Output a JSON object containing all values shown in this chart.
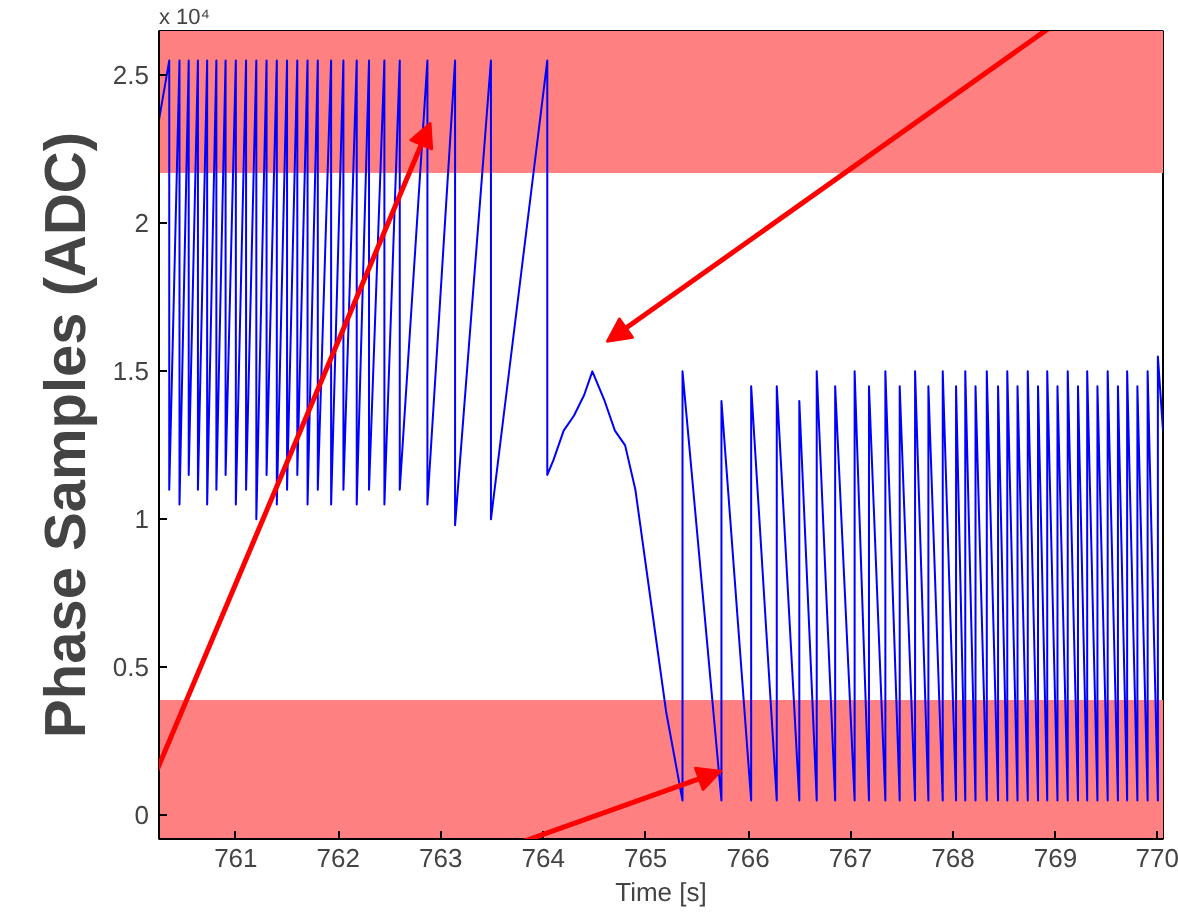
{
  "chart_data": {
    "type": "line",
    "xlabel": "Time [s]",
    "ylabel": "Phase Samples (ADC)",
    "annotations": [
      "x 10⁴"
    ],
    "xlim": [
      760.25,
      770.05
    ],
    "ylim": [
      -0.08,
      2.65
    ],
    "xticks": [
      761,
      762,
      763,
      764,
      765,
      766,
      767,
      768,
      769,
      770
    ],
    "yticks": [
      0,
      0.5,
      1,
      1.5,
      2,
      2.5
    ],
    "grid": false,
    "bands": [
      {
        "axis": "y",
        "from": 2.17,
        "to": 2.65,
        "color": "#ff8080"
      },
      {
        "axis": "y",
        "from": -0.08,
        "to": 0.39,
        "color": "#ff8080"
      }
    ],
    "series": [
      {
        "color": "#0000ff",
        "x": [
          760.25,
          760.35,
          760.35,
          760.45,
          760.45,
          760.54,
          760.54,
          760.63,
          760.63,
          760.72,
          760.72,
          760.81,
          760.81,
          760.9,
          760.9,
          761.0,
          761.0,
          761.1,
          761.1,
          761.2,
          761.2,
          761.3,
          761.3,
          761.4,
          761.4,
          761.5,
          761.5,
          761.6,
          761.6,
          761.7,
          761.7,
          761.8,
          761.8,
          761.93,
          761.93,
          762.05,
          762.05,
          762.18,
          762.18,
          762.3,
          762.3,
          762.45,
          762.45,
          762.6,
          762.6,
          762.87,
          762.87,
          763.14,
          763.14,
          763.49,
          763.49,
          764.04,
          764.04,
          764.1,
          764.2,
          764.3,
          764.4,
          764.48,
          764.6,
          764.7,
          764.8,
          764.9,
          765.0,
          765.1,
          765.2,
          765.36,
          765.36,
          765.74,
          765.74,
          766.03,
          766.03,
          766.28,
          766.28,
          766.5,
          766.5,
          766.67,
          766.67,
          766.85,
          766.85,
          767.04,
          767.04,
          767.18,
          767.18,
          767.34,
          767.34,
          767.48,
          767.48,
          767.63,
          767.63,
          767.76,
          767.76,
          767.9,
          767.9,
          768.03,
          768.03,
          768.12,
          768.12,
          768.22,
          768.22,
          768.33,
          768.33,
          768.44,
          768.44,
          768.53,
          768.53,
          768.63,
          768.63,
          768.73,
          768.73,
          768.83,
          768.83,
          768.92,
          768.92,
          769.02,
          769.02,
          769.12,
          769.12,
          769.22,
          769.22,
          769.31,
          769.31,
          769.41,
          769.41,
          769.51,
          769.51,
          769.61,
          769.61,
          769.7,
          769.7,
          769.8,
          769.8,
          769.9,
          769.9,
          770.0,
          770.0,
          770.05
        ],
        "values": [
          2.35,
          2.55,
          1.1,
          2.55,
          1.05,
          2.55,
          1.15,
          2.55,
          1.1,
          2.55,
          1.05,
          2.55,
          1.1,
          2.55,
          1.15,
          2.55,
          1.05,
          2.55,
          1.1,
          2.55,
          1.0,
          2.55,
          1.15,
          2.55,
          1.05,
          2.55,
          1.1,
          2.55,
          1.15,
          2.55,
          1.05,
          2.55,
          1.1,
          2.55,
          1.05,
          2.55,
          1.1,
          2.55,
          1.05,
          2.55,
          1.1,
          2.55,
          1.05,
          2.55,
          1.1,
          2.55,
          1.05,
          2.55,
          0.98,
          2.55,
          1.0,
          2.55,
          1.15,
          1.2,
          1.3,
          1.35,
          1.42,
          1.5,
          1.4,
          1.3,
          1.25,
          1.1,
          0.85,
          0.6,
          0.35,
          0.05,
          1.5,
          0.05,
          1.4,
          0.05,
          1.45,
          0.05,
          1.45,
          0.05,
          1.4,
          0.05,
          1.5,
          0.05,
          1.45,
          0.05,
          1.5,
          0.05,
          1.45,
          0.05,
          1.5,
          0.05,
          1.45,
          0.05,
          1.5,
          0.05,
          1.45,
          0.05,
          1.5,
          0.05,
          1.45,
          0.05,
          1.5,
          0.05,
          1.45,
          0.05,
          1.5,
          0.05,
          1.45,
          0.05,
          1.5,
          0.05,
          1.45,
          0.05,
          1.5,
          0.05,
          1.45,
          0.05,
          1.5,
          0.05,
          1.45,
          0.05,
          1.5,
          0.05,
          1.45,
          0.05,
          1.5,
          0.05,
          1.45,
          0.05,
          1.5,
          0.05,
          1.45,
          0.05,
          1.5,
          0.05,
          1.45,
          0.05,
          1.5,
          0.05,
          1.55,
          1.3
        ]
      }
    ]
  }
}
